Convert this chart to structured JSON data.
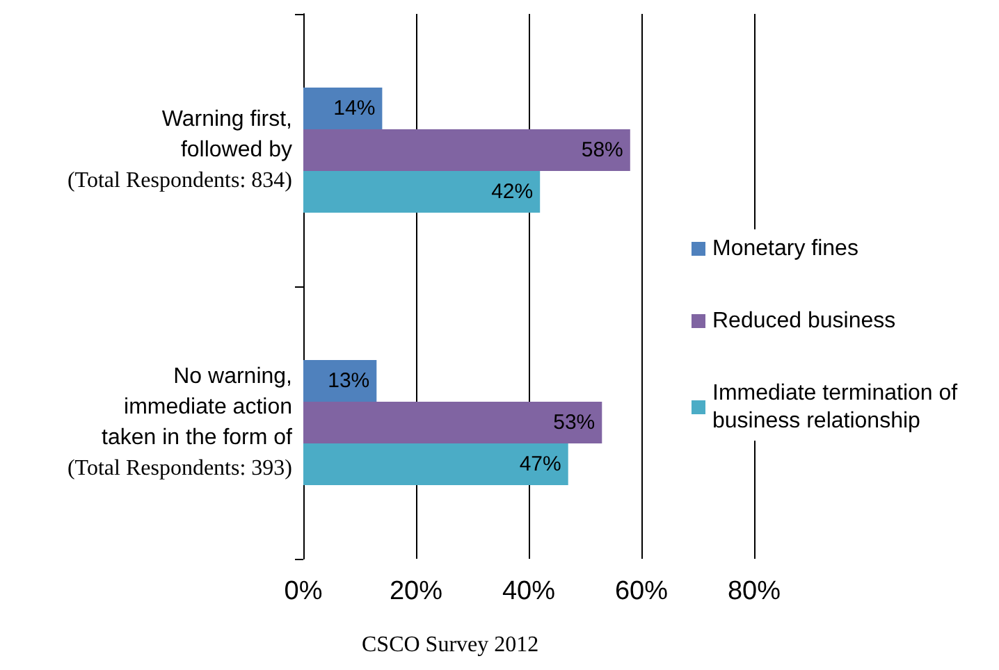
{
  "chart_data": {
    "type": "bar",
    "orientation": "horizontal",
    "categories": [
      "Warning first,\nfollowed by\n(Total Respondents: 834)",
      "No warning,\nimmediate action\ntaken in the form of\n(Total Respondents: 393)"
    ],
    "series": [
      {
        "name": "Monetary fines",
        "color": "#4f81bd",
        "values": [
          14,
          13
        ],
        "value_labels": [
          "14%",
          "13%"
        ]
      },
      {
        "name": "Reduced business",
        "color": "#8064a2",
        "values": [
          58,
          53
        ],
        "value_labels": [
          "58%",
          "53%"
        ]
      },
      {
        "name": "Immediate termination of business relationship",
        "color": "#4bacc6",
        "values": [
          42,
          47
        ],
        "value_labels": [
          "42%",
          "47%"
        ]
      }
    ],
    "xlim": [
      0,
      80
    ],
    "xticks": [
      {
        "value": 0,
        "label": "0%"
      },
      {
        "value": 20,
        "label": "20%"
      },
      {
        "value": 40,
        "label": "40%"
      },
      {
        "value": 60,
        "label": "60%"
      },
      {
        "value": 80,
        "label": "80%"
      }
    ],
    "grid": "x",
    "legend": "right",
    "annotations": [
      "CSCO Survey 2012"
    ]
  }
}
